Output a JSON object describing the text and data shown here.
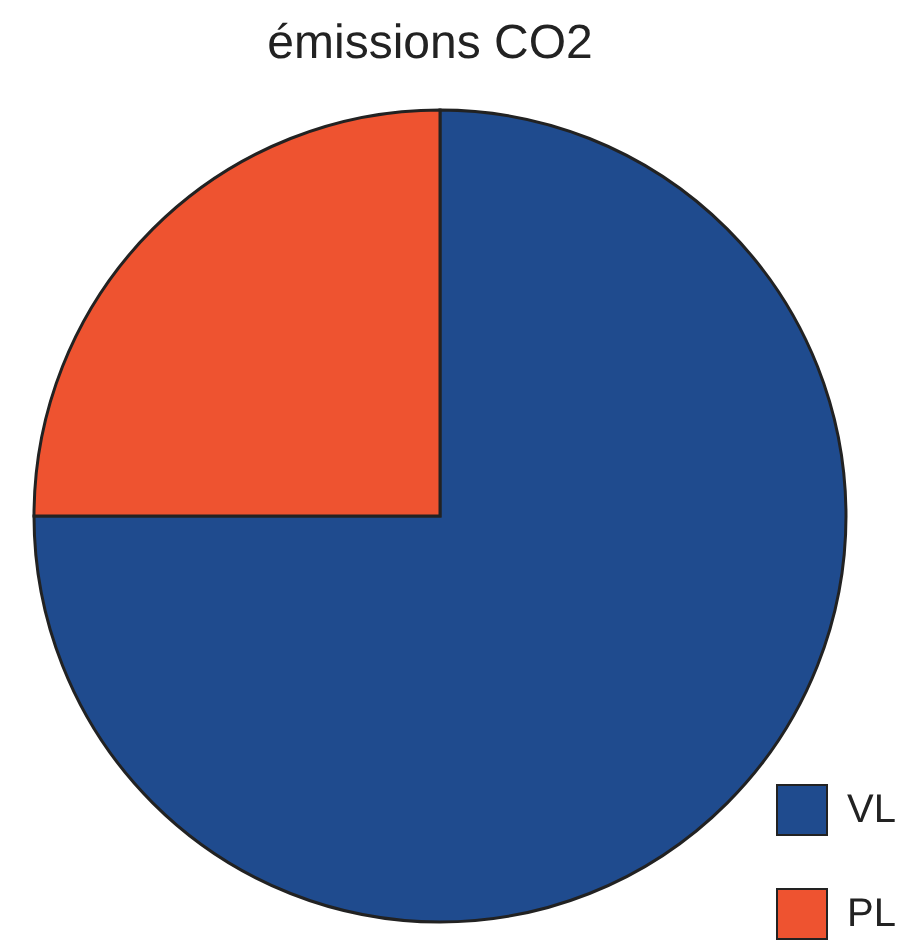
{
  "chart_data": {
    "type": "pie",
    "title": "émissions CO2",
    "categories": [
      "VL",
      "PL"
    ],
    "values": [
      75,
      25
    ],
    "colors": [
      "#1f4b8e",
      "#ee5330"
    ],
    "legend": "bottom right"
  }
}
